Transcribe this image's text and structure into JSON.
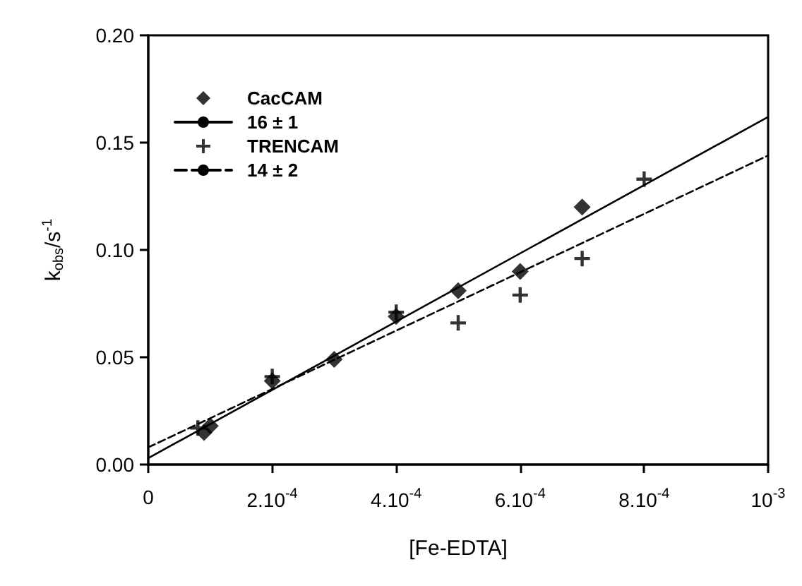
{
  "chart_data": {
    "type": "scatter",
    "xlabel": "[Fe-EDTA]",
    "ylabel": "k$_{obs}$/s$^{-1}$",
    "xlim": [
      0,
      0.001
    ],
    "xticks": [
      0,
      {
        "value": 0.0002,
        "label": "2.10$^{-4}$"
      },
      {
        "value": 0.0004,
        "label": "4.10$^{-4}$"
      },
      {
        "value": 0.0006,
        "label": "6.10$^{-4}$"
      },
      {
        "value": 0.0008,
        "label": "8.10$^{-4}$"
      },
      {
        "value": 0.001,
        "label": "10$^{-3}$"
      }
    ],
    "ylim": [
      0,
      0.2
    ],
    "yticks": [
      {
        "value": 0,
        "label": "0.00"
      },
      {
        "value": 0.05,
        "label": "0.05"
      },
      {
        "value": 0.1,
        "label": "0.10"
      },
      {
        "value": 0.15,
        "label": "0.15"
      },
      {
        "value": 0.2,
        "label": "0.20"
      }
    ],
    "grid": false,
    "legend": "top left",
    "series": [
      {
        "name": "CacCAM",
        "type": "scatter",
        "marker": "diamond",
        "color": "#000000",
        "x": [
          9e-05,
          0.0001,
          0.0002,
          0.0003,
          0.0004,
          0.0005,
          0.0006,
          0.0007
        ],
        "values": [
          0.015,
          0.018,
          0.039,
          0.049,
          0.069,
          0.081,
          0.09,
          0.12
        ]
      },
      {
        "name": "16 ± 1",
        "type": "line",
        "marker": "none",
        "line_style": "solid",
        "color": "#000000",
        "x": [
          0,
          0.001
        ],
        "values": [
          0.003,
          0.162
        ]
      },
      {
        "name": "TRENCAM",
        "type": "scatter",
        "marker": "cross",
        "color": "#000000",
        "x": [
          8e-05,
          0.0002,
          0.0004,
          0.0005,
          0.0006,
          0.0007,
          0.0008
        ],
        "values": [
          0.017,
          0.041,
          0.071,
          0.066,
          0.079,
          0.096,
          0.133
        ]
      },
      {
        "name": "14 ± 2",
        "type": "line",
        "marker": "none",
        "line_style": "dashed",
        "color": "#000000",
        "x": [
          0,
          0.001
        ],
        "values": [
          0.008,
          0.144
        ]
      }
    ]
  }
}
